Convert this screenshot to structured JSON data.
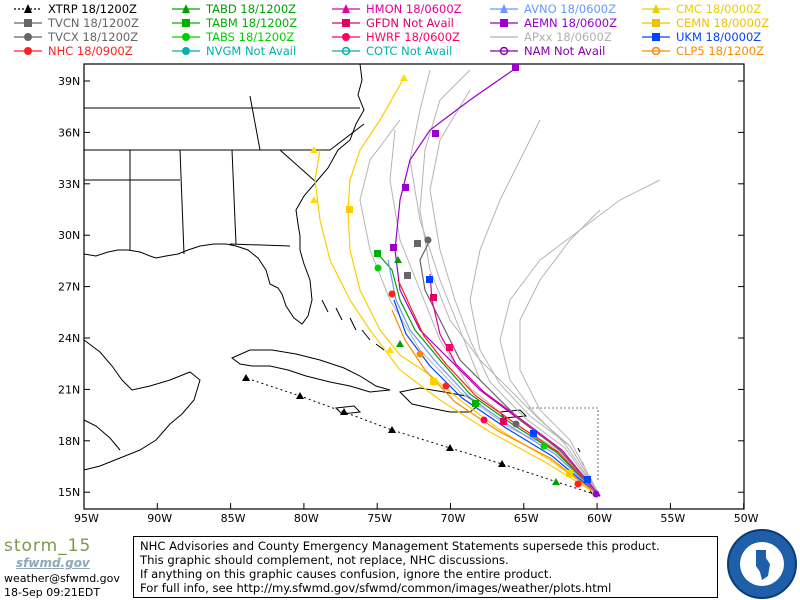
{
  "legend": [
    {
      "name": "XTRP",
      "time": "18/1200Z",
      "color": "#000000",
      "marker": "triangle-dotted"
    },
    {
      "name": "TVCN",
      "time": "18/1200Z",
      "color": "#666666",
      "marker": "square"
    },
    {
      "name": "TVCX",
      "time": "18/1200Z",
      "color": "#666666",
      "marker": "circle"
    },
    {
      "name": "NHC",
      "time": "18/0900Z",
      "color": "#ff2020",
      "marker": "circle"
    },
    {
      "name": "TABD",
      "time": "18/1200Z",
      "color": "#00a000",
      "marker": "triangle"
    },
    {
      "name": "TABM",
      "time": "18/1200Z",
      "color": "#00b000",
      "marker": "square"
    },
    {
      "name": "TABS",
      "time": "18/1200Z",
      "color": "#00d000",
      "marker": "circle"
    },
    {
      "name": "NVGM",
      "time": "Not Avail",
      "color": "#00b0b0",
      "marker": "circle"
    },
    {
      "name": "HMON",
      "time": "18/0600Z",
      "color": "#e000a0",
      "marker": "triangle"
    },
    {
      "name": "GFDN",
      "time": "Not Avail",
      "color": "#e00060",
      "marker": "square"
    },
    {
      "name": "HWRF",
      "time": "18/0600Z",
      "color": "#ff0066",
      "marker": "circle"
    },
    {
      "name": "COTC",
      "time": "Not Avail",
      "color": "#00b0b0",
      "marker": "ring"
    },
    {
      "name": "AVNO",
      "time": "18/0600Z",
      "color": "#6699ff",
      "marker": "triangle"
    },
    {
      "name": "AEMN",
      "time": "18/0600Z",
      "color": "#9900cc",
      "marker": "square"
    },
    {
      "name": "APxx",
      "time": "18/0600Z",
      "color": "#b0b0b0",
      "marker": "line"
    },
    {
      "name": "NAM",
      "time": "Not Avail",
      "color": "#8800aa",
      "marker": "ring"
    },
    {
      "name": "CMC",
      "time": "18/0000Z",
      "color": "#e8d000",
      "marker": "triangle"
    },
    {
      "name": "CEMN",
      "time": "18/0000Z",
      "color": "#f0c000",
      "marker": "square"
    },
    {
      "name": "UKM",
      "time": "18/0000Z",
      "color": "#0044ff",
      "marker": "square"
    },
    {
      "name": "CLP5",
      "time": "18/1200Z",
      "color": "#ff8800",
      "marker": "ring"
    }
  ],
  "axes": {
    "lat_labels": [
      "39N",
      "36N",
      "33N",
      "30N",
      "27N",
      "24N",
      "21N",
      "18N",
      "15N"
    ],
    "lon_labels": [
      "95W",
      "90W",
      "85W",
      "80W",
      "75W",
      "70W",
      "65W",
      "60W",
      "55W",
      "50W"
    ]
  },
  "footer": {
    "lines": [
      "NHC Advisories and County Emergency Management Statements supersede this product.",
      "This graphic should complement, not replace, NHC discussions.",
      "If anything on this graphic causes confusion, ignore the entire product.",
      "For full info, see  http://my.sfwmd.gov/sfwmd/common/images/weather/plots.html"
    ]
  },
  "brand": {
    "title": "storm_15",
    "logo": "sfwmd.gov",
    "email": "weather@sfwmd.gov",
    "timestamp": "18-Sep 09:21EDT"
  }
}
